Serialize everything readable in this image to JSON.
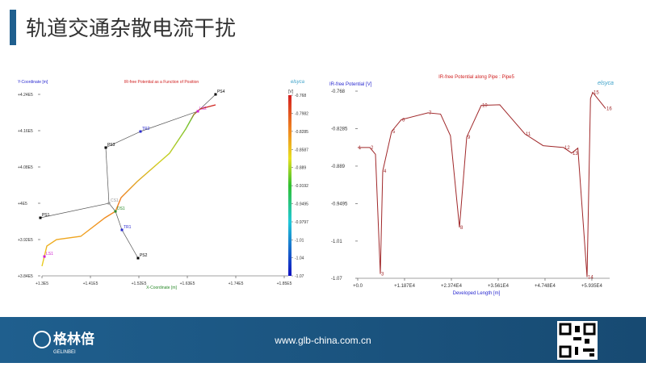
{
  "header": {
    "title": "轨道交通杂散电流干扰"
  },
  "footer": {
    "url": "www.glb-china.com.cn",
    "logo_cn": "格林倍",
    "logo_en": "GELINBEI"
  },
  "chart_data": [
    {
      "type": "network",
      "title": "IR-free Potential as a Function of Position",
      "y_label": "Y-Coordinate [m]",
      "x_label": "X-Coordinate [m]",
      "logo": "elsyca",
      "xlim": [
        130000,
        185000
      ],
      "ylim": [
        384000,
        424000
      ],
      "xticks": [
        {
          "value": 130000,
          "label": "+1.3E5"
        },
        {
          "value": 141000,
          "label": "+1.41E5"
        },
        {
          "value": 152000,
          "label": "+1.52E5"
        },
        {
          "value": 163000,
          "label": "+1.63E5"
        },
        {
          "value": 174000,
          "label": "+1.74E5"
        },
        {
          "value": 185000,
          "label": "+1.85E5"
        }
      ],
      "yticks": [
        {
          "value": 424000,
          "label": "+4.24E5"
        },
        {
          "value": 416000,
          "label": "+4.16E5"
        },
        {
          "value": 408000,
          "label": "+4.08E5"
        },
        {
          "value": 400000,
          "label": "+4E5"
        },
        {
          "value": 392000,
          "label": "+3.92E5"
        },
        {
          "value": 384000,
          "label": "+3.84E5"
        }
      ],
      "nodes": [
        {
          "label": "PS4",
          "x": 169410,
          "y": 424000,
          "color": "#000000"
        },
        {
          "label": "PS3",
          "x": 144480,
          "y": 412270,
          "color": "#000000"
        },
        {
          "label": "TR2",
          "x": 152360,
          "y": 415820,
          "color": "#2a2ad0"
        },
        {
          "label": "PS1",
          "x": 129630,
          "y": 396800,
          "color": "#000000"
        },
        {
          "label": "CS1",
          "x": 145210,
          "y": 400000,
          "color": "#999999"
        },
        {
          "label": "DS1",
          "x": 146680,
          "y": 398220,
          "color": "#2a8a2a"
        },
        {
          "label": "TR1",
          "x": 148150,
          "y": 394130,
          "color": "#2a2ad0"
        },
        {
          "label": "PS2",
          "x": 151810,
          "y": 387910,
          "color": "#000000"
        },
        {
          "label": "LS2",
          "x": 165380,
          "y": 420270,
          "color": "#d020d0"
        },
        {
          "label": "LS1",
          "x": 130550,
          "y": 388260,
          "color": "#d020d0"
        }
      ],
      "edges": [
        [
          1,
          4
        ],
        [
          3,
          4
        ],
        [
          4,
          5
        ],
        [
          5,
          6
        ],
        [
          6,
          7
        ],
        [
          1,
          2
        ],
        [
          2,
          8
        ],
        [
          8,
          0
        ]
      ],
      "pipe": {
        "x": [
          130000,
          131100,
          133300,
          138800,
          144300,
          146680,
          147960,
          151630,
          158960,
          162630,
          164470,
          165930,
          169410
        ],
        "y": [
          386130,
          390570,
          392000,
          392710,
          396800,
          398220,
          401240,
          404800,
          411020,
          416360,
          419560,
          420800,
          421690
        ]
      },
      "colorbar": {
        "unit": "[V]",
        "clim": [
          -1.07,
          -0.768
        ],
        "ticks": [
          -0.768,
          -0.7982,
          -0.8285,
          -0.8587,
          -0.889,
          -0.9192,
          -0.9495,
          -0.9797,
          -1.01,
          -1.04,
          -1.07
        ]
      }
    },
    {
      "type": "line",
      "title": "IR-free Potential along Pipe : Pipe5",
      "y_label": "IR-free Potential [V]",
      "x_label": "Developed Length [m]",
      "logo": "elsyca",
      "color": "#a0282a",
      "xlim": [
        0,
        63860
      ],
      "ylim": [
        -1.07,
        -0.768
      ],
      "xticks": [
        {
          "value": 0,
          "label": "+0.0"
        },
        {
          "value": 11870,
          "label": "+1.187E4"
        },
        {
          "value": 23740,
          "label": "+2.374E4"
        },
        {
          "value": 35610,
          "label": "+3.561E4"
        },
        {
          "value": 47480,
          "label": "+4.748E4"
        },
        {
          "value": 59350,
          "label": "+5.935E4"
        }
      ],
      "yticks": [
        -0.768,
        -0.8285,
        -0.889,
        -0.9495,
        -1.01,
        -1.07
      ],
      "x": [
        0,
        3070,
        4500,
        5730,
        6340,
        8590,
        11050,
        17800,
        21000,
        23500,
        25790,
        27630,
        31310,
        36000,
        42370,
        47000,
        52200,
        54240,
        55800,
        58130,
        59000,
        59560,
        62840
      ],
      "values": [
        -0.859,
        -0.859,
        -0.87,
        -1.063,
        -0.897,
        -0.833,
        -0.814,
        -0.803,
        -0.805,
        -0.84,
        -0.988,
        -0.842,
        -0.791,
        -0.79,
        -0.837,
        -0.856,
        -0.859,
        -0.868,
        -0.86,
        -1.068,
        -0.78,
        -0.77,
        -0.796
      ],
      "point_labels": [
        "1",
        "2",
        null,
        "3",
        "4",
        "5",
        "6",
        "7",
        null,
        null,
        "8",
        "9",
        "10",
        null,
        "11",
        null,
        "12",
        "13",
        null,
        "14",
        null,
        "15",
        "16"
      ]
    }
  ]
}
